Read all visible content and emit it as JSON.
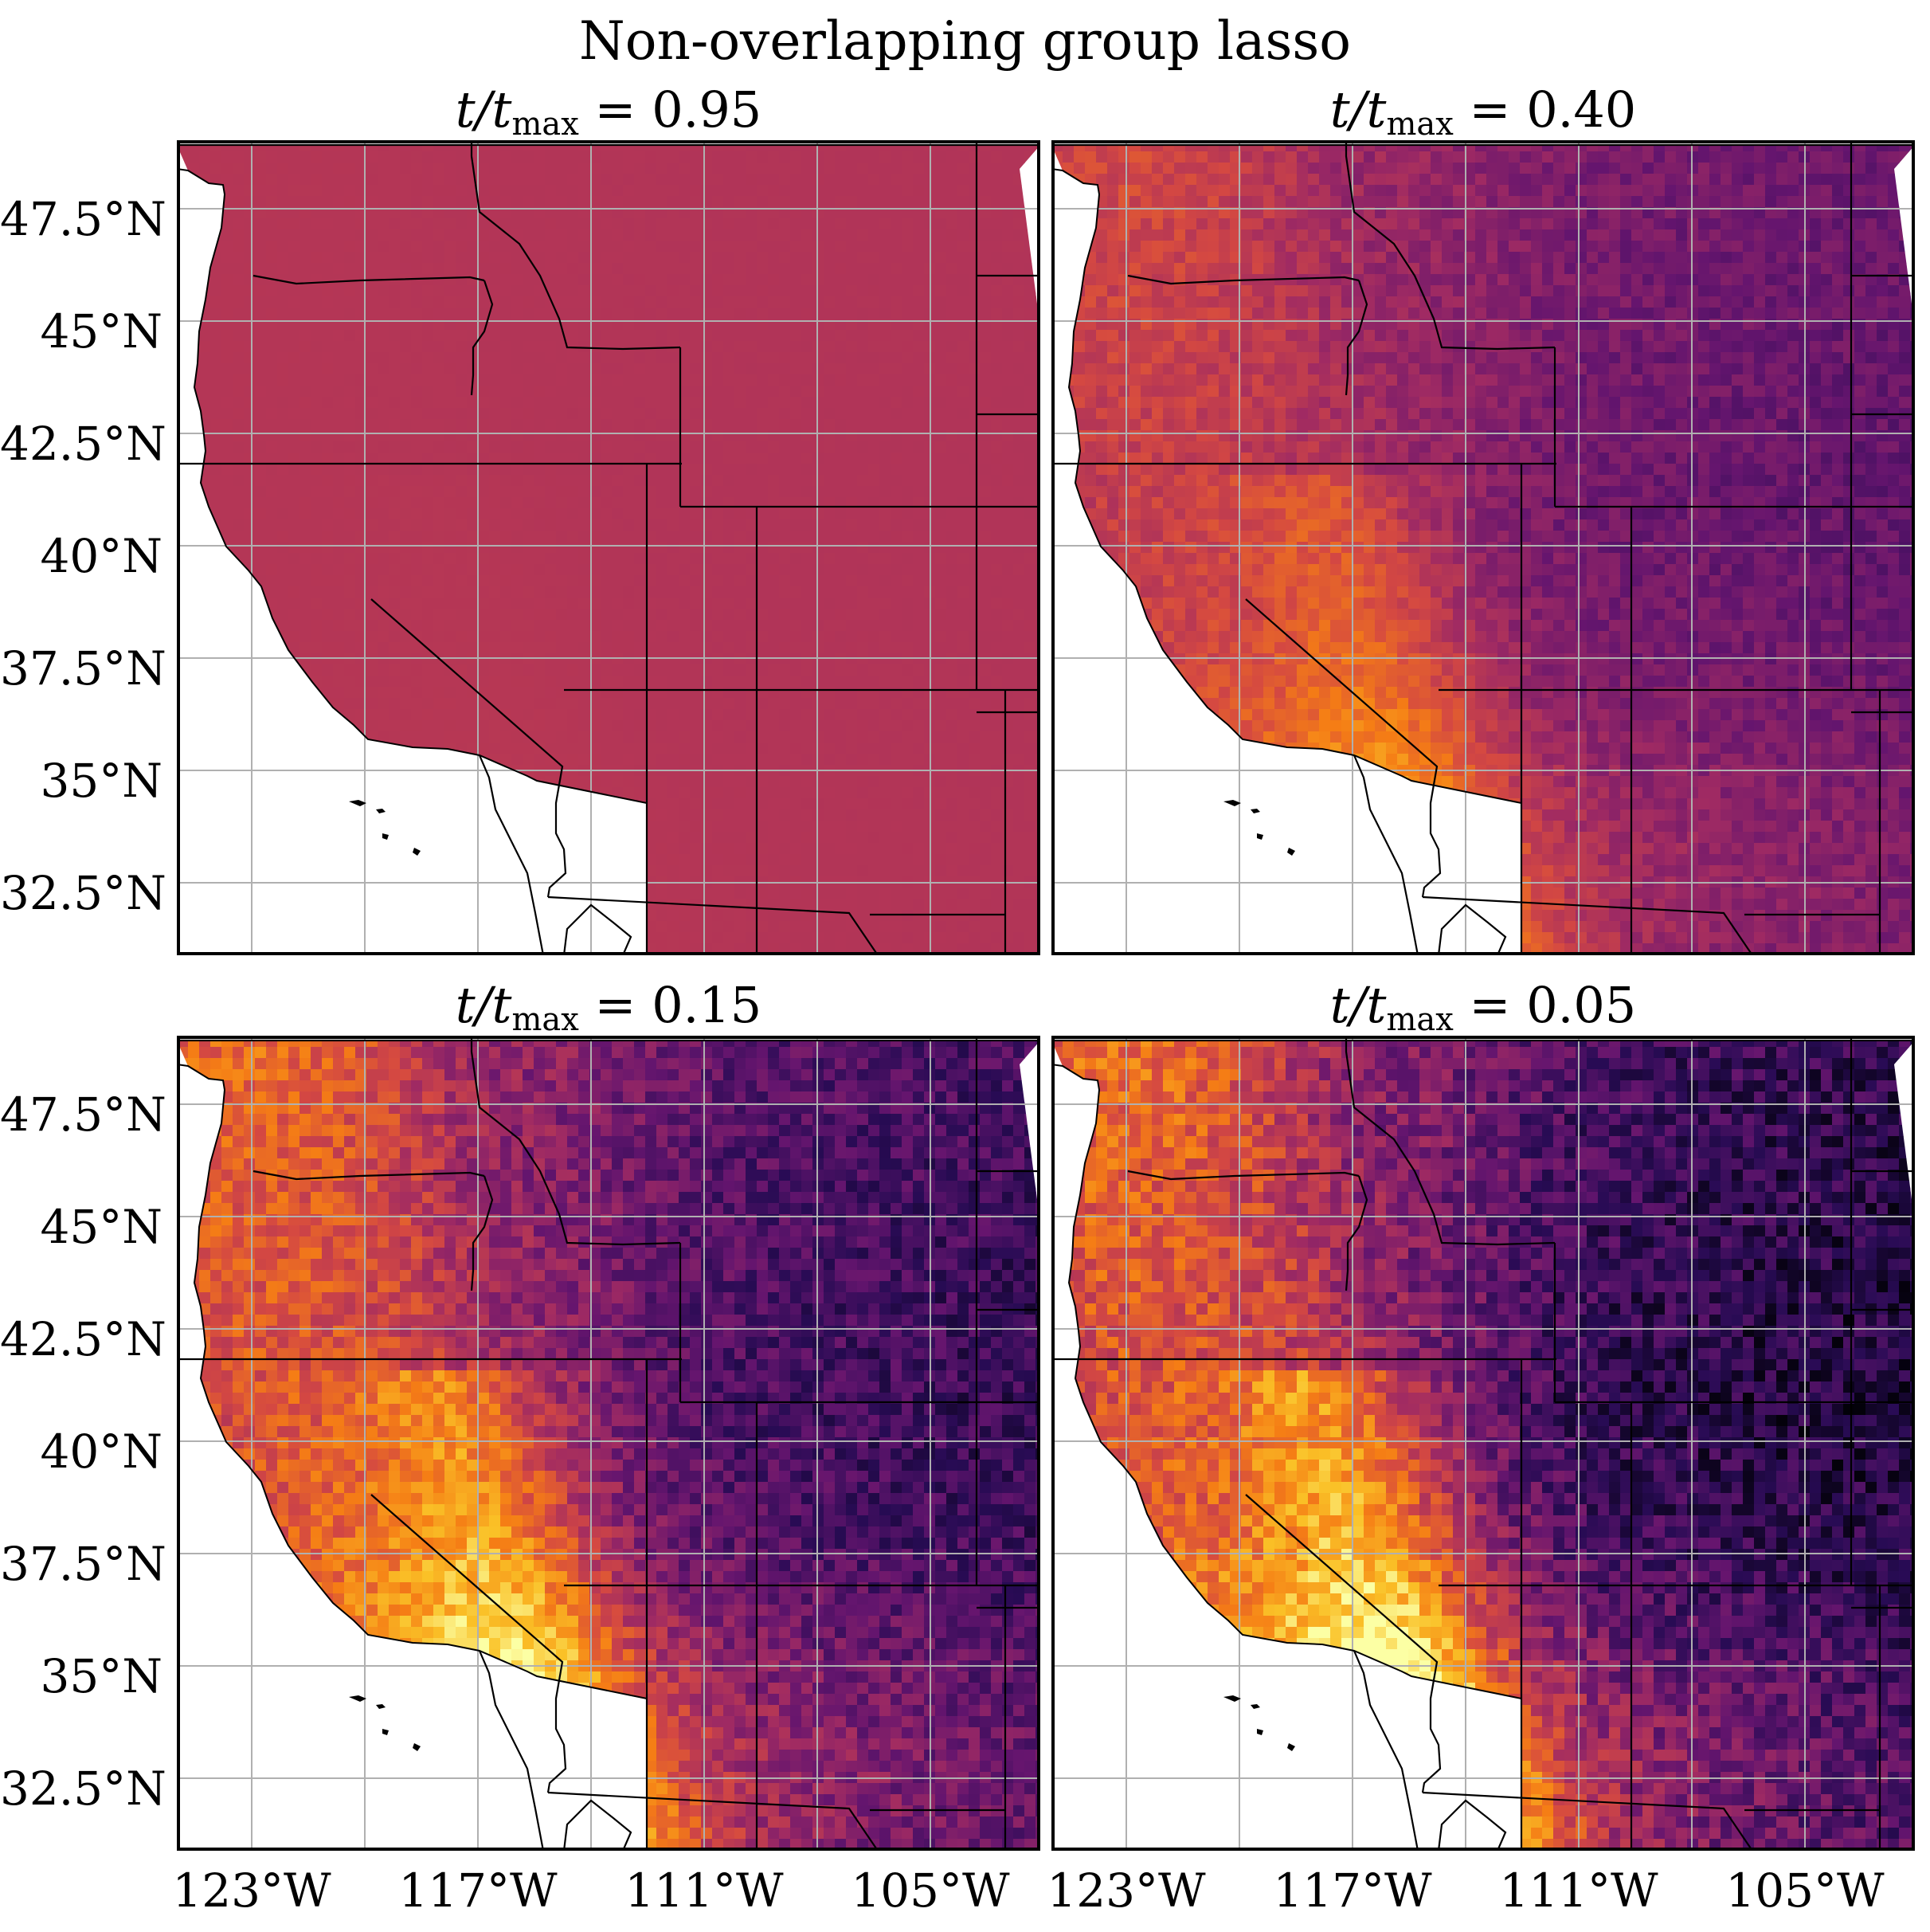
{
  "suptitle": "Non-overlapping group lasso",
  "title_prefix": "t/t",
  "title_sub": "max",
  "panels": [
    {
      "value": "= 0.95",
      "intensity": 0.48,
      "contrast": 0.02
    },
    {
      "value": "= 0.40",
      "intensity": 0.38,
      "contrast": 0.55
    },
    {
      "value": "= 0.15",
      "intensity": 0.34,
      "contrast": 0.95
    },
    {
      "value": "= 0.05",
      "intensity": 0.3,
      "contrast": 1.1
    }
  ],
  "lat_ticks": [
    "47.5°N",
    "45°N",
    "42.5°N",
    "40°N",
    "37.5°N",
    "35°N",
    "32.5°N"
  ],
  "lon_ticks": [
    "123°W",
    "117°W",
    "111°W",
    "105°W"
  ],
  "colormap": "inferno",
  "colors": {
    "ocean": "#ffffff",
    "border": "#000000",
    "grid": "#b0b0b0"
  }
}
